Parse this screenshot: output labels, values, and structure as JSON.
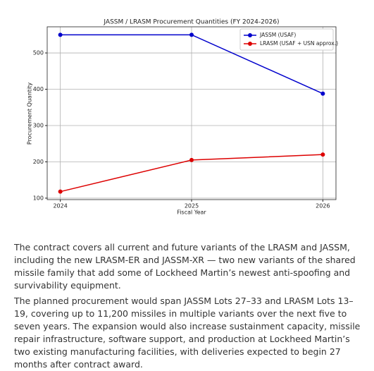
{
  "chart_data": {
    "type": "line",
    "title": "JASSM / LRASM Procurement Quantities (FY 2024-2026)",
    "x_label": "Fiscal Year",
    "y_label": "Procurement Quantity",
    "x": [
      2024,
      2025,
      2026
    ],
    "series": [
      {
        "name": "JASSM (USAF)",
        "color": "#0000cc",
        "values": [
          550,
          550,
          388
        ]
      },
      {
        "name": "LRASM (USAF + USN approx.)",
        "color": "#dd0000",
        "values": [
          118,
          205,
          220
        ]
      }
    ],
    "xlim": [
      2023.9,
      2026.1
    ],
    "xticks": [
      2024,
      2025,
      2026
    ],
    "ylim": [
      96,
      572
    ],
    "yticks": [
      100,
      200,
      300,
      400,
      500
    ],
    "grid": true,
    "legend": "upper-right"
  },
  "paragraphs": [
    "The contract covers all current and future variants of the LRASM and JASSM, including the new LRASM-ER and JASSM-XR — two new variants of the shared missile family that add some of Lockheed Martin’s newest anti-spoofing and survivability equipment.",
    "The planned procurement would span JASSM Lots 27–33 and LRASM Lots 13–19, covering up to 11,200 missiles in multiple variants over the next five to seven years. The expansion would also increase sustainment capacity, missile repair infrastructure, software support, and production at Lockheed Martin’s two existing manufacturing facilities, with deliveries expected to begin 27 months after contract award."
  ]
}
